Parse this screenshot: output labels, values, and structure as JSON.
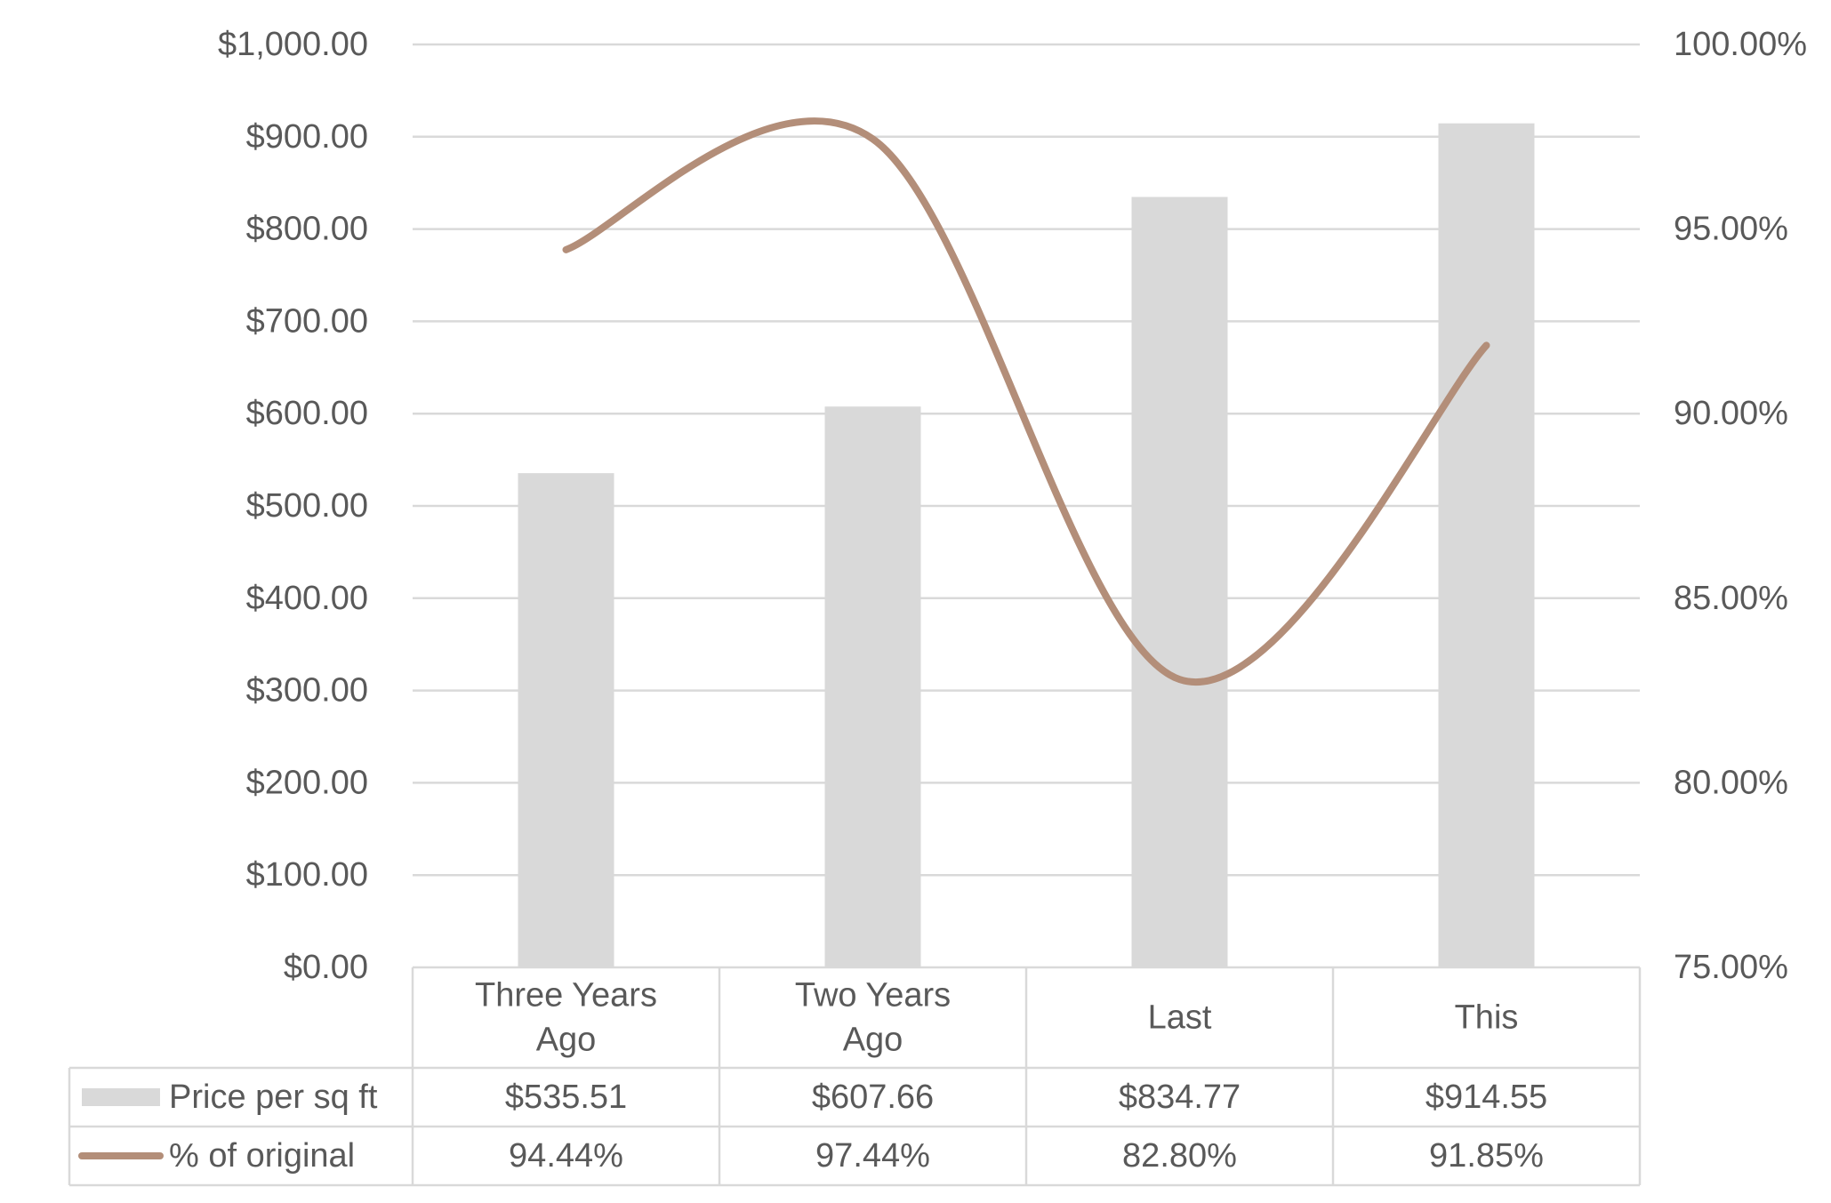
{
  "chart_data": {
    "type": "bar",
    "categories": [
      [
        "Three Years",
        "Ago"
      ],
      [
        "Two Years",
        "Ago"
      ],
      [
        "Last"
      ],
      [
        "This"
      ]
    ],
    "series": [
      {
        "name": "Price per sq ft",
        "type": "bar",
        "axis": "left",
        "color": "#d9d9d9",
        "values": [
          535.51,
          607.66,
          834.77,
          914.55
        ],
        "labels": [
          "$535.51",
          "$607.66",
          "$834.77",
          "$914.55"
        ]
      },
      {
        "name": "% of original",
        "type": "line",
        "smooth": true,
        "axis": "right",
        "color": "#b38e79",
        "values": [
          94.44,
          97.44,
          82.8,
          91.85
        ],
        "labels": [
          "94.44%",
          "97.44%",
          "82.80%",
          "91.85%"
        ]
      }
    ],
    "y_left": {
      "min": 0,
      "max": 1000,
      "step": 100,
      "ticks": [
        "$0.00",
        "$100.00",
        "$200.00",
        "$300.00",
        "$400.00",
        "$500.00",
        "$600.00",
        "$700.00",
        "$800.00",
        "$900.00",
        "$1,000.00"
      ]
    },
    "y_right": {
      "min": 75,
      "max": 100,
      "step": 5,
      "ticks": [
        "75.00%",
        "80.00%",
        "85.00%",
        "90.00%",
        "95.00%",
        "100.00%"
      ]
    },
    "grid": true,
    "legend": "data-table",
    "colors": {
      "grid": "#d9d9d9",
      "text": "#595959",
      "table_border": "#d9d9d9"
    }
  }
}
